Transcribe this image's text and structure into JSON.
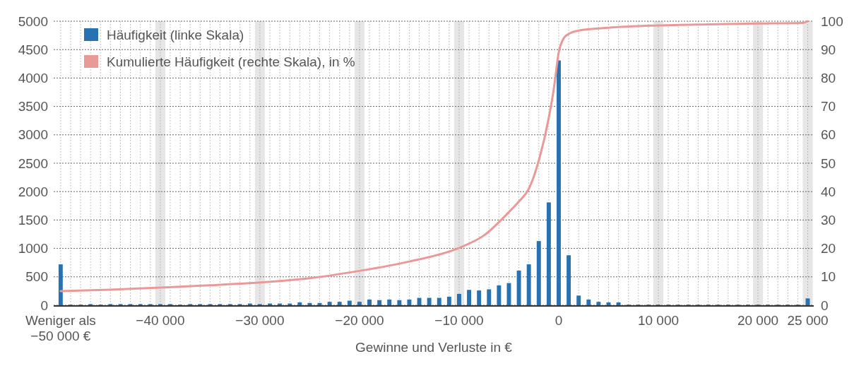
{
  "chart_data": {
    "type": "bar",
    "xlabel": "Gewinne und Verluste in €",
    "x": [
      -50000,
      -49000,
      -48000,
      -47000,
      -46000,
      -45000,
      -44000,
      -43000,
      -42000,
      -41000,
      -40000,
      -39000,
      -38000,
      -37000,
      -36000,
      -35000,
      -34000,
      -33000,
      -32000,
      -31000,
      -30000,
      -29000,
      -28000,
      -27000,
      -26000,
      -25000,
      -24000,
      -23000,
      -22000,
      -21000,
      -20000,
      -19000,
      -18000,
      -17000,
      -16000,
      -15000,
      -14000,
      -13000,
      -12000,
      -11000,
      -10000,
      -9000,
      -8000,
      -7000,
      -6000,
      -5000,
      -4000,
      -3000,
      -2000,
      -1000,
      0,
      1000,
      2000,
      3000,
      4000,
      5000,
      6000,
      7000,
      8000,
      9000,
      10000,
      11000,
      12000,
      13000,
      14000,
      15000,
      16000,
      17000,
      18000,
      19000,
      20000,
      21000,
      22000,
      23000,
      24000,
      25000
    ],
    "series": [
      {
        "name": "Häufigkeit (linke Skala)",
        "color": "#2872b2",
        "values": [
          720,
          10,
          10,
          20,
          10,
          20,
          20,
          20,
          20,
          20,
          20,
          20,
          10,
          20,
          20,
          20,
          20,
          20,
          20,
          30,
          20,
          30,
          30,
          30,
          50,
          40,
          40,
          60,
          60,
          80,
          60,
          100,
          90,
          100,
          90,
          100,
          130,
          130,
          130,
          150,
          200,
          270,
          260,
          280,
          350,
          390,
          610,
          720,
          1130,
          1810,
          4310,
          880,
          170,
          100,
          60,
          50,
          50,
          10,
          10,
          10,
          10,
          10,
          10,
          10,
          10,
          10,
          10,
          10,
          10,
          10,
          10,
          10,
          10,
          10,
          10,
          120
        ]
      },
      {
        "name": "Kumulierte Häufigkeit (rechte Skala), in %",
        "type": "line",
        "axis": "y2",
        "color": "#e99a98",
        "x": [
          -50000,
          -45000,
          -40000,
          -35000,
          -30000,
          -25000,
          -20000,
          -15000,
          -10000,
          -7500,
          -5000,
          -4000,
          -3000,
          -2000,
          -1000,
          -500,
          0,
          500,
          1000,
          2000,
          5000,
          10000,
          15000,
          20000,
          24500,
          25000
        ],
        "values": [
          5,
          5.5,
          6.2,
          7,
          8,
          9.5,
          12.1,
          15.4,
          20.2,
          24.6,
          32.8,
          36.5,
          41,
          51,
          66,
          76,
          89,
          94,
          95.5,
          96.7,
          97.7,
          98.5,
          98.9,
          99.2,
          99.4,
          100
        ]
      }
    ],
    "xlim": [
      -50700,
      25600
    ],
    "xticks": [
      {
        "value": -50000,
        "label": "Weniger als\n−50 000 €"
      },
      {
        "value": -49000,
        "label": null
      },
      {
        "value": -48000,
        "label": null
      },
      {
        "value": -47000,
        "label": null
      },
      {
        "value": -46000,
        "label": null
      },
      {
        "value": -45000,
        "label": null
      },
      {
        "value": -44000,
        "label": null
      },
      {
        "value": -43000,
        "label": null
      },
      {
        "value": -42000,
        "label": null
      },
      {
        "value": -41000,
        "label": null
      },
      {
        "value": -40000,
        "label": "−40 000"
      },
      {
        "value": -39000,
        "label": null
      },
      {
        "value": -38000,
        "label": null
      },
      {
        "value": -37000,
        "label": null
      },
      {
        "value": -36000,
        "label": null
      },
      {
        "value": -35000,
        "label": null
      },
      {
        "value": -34000,
        "label": null
      },
      {
        "value": -33000,
        "label": null
      },
      {
        "value": -32000,
        "label": null
      },
      {
        "value": -31000,
        "label": null
      },
      {
        "value": -30000,
        "label": "−30 000"
      },
      {
        "value": -29000,
        "label": null
      },
      {
        "value": -28000,
        "label": null
      },
      {
        "value": -27000,
        "label": null
      },
      {
        "value": -26000,
        "label": null
      },
      {
        "value": -25000,
        "label": null
      },
      {
        "value": -24000,
        "label": null
      },
      {
        "value": -23000,
        "label": null
      },
      {
        "value": -22000,
        "label": null
      },
      {
        "value": -21000,
        "label": null
      },
      {
        "value": -20000,
        "label": "−20 000"
      },
      {
        "value": -19000,
        "label": null
      },
      {
        "value": -18000,
        "label": null
      },
      {
        "value": -17000,
        "label": null
      },
      {
        "value": -16000,
        "label": null
      },
      {
        "value": -15000,
        "label": null
      },
      {
        "value": -14000,
        "label": null
      },
      {
        "value": -13000,
        "label": null
      },
      {
        "value": -12000,
        "label": null
      },
      {
        "value": -11000,
        "label": null
      },
      {
        "value": -10000,
        "label": "−10 000"
      },
      {
        "value": -9000,
        "label": null
      },
      {
        "value": -8000,
        "label": null
      },
      {
        "value": -7000,
        "label": null
      },
      {
        "value": -6000,
        "label": null
      },
      {
        "value": -5000,
        "label": null
      },
      {
        "value": -4000,
        "label": null
      },
      {
        "value": -3000,
        "label": null
      },
      {
        "value": -2000,
        "label": null
      },
      {
        "value": -1000,
        "label": null
      },
      0,
      {
        "value": 1000,
        "label": null
      },
      {
        "value": 2000,
        "label": null
      },
      {
        "value": 3000,
        "label": null
      },
      {
        "value": 4000,
        "label": null
      },
      {
        "value": 5000,
        "label": null
      },
      {
        "value": 6000,
        "label": null
      },
      {
        "value": 7000,
        "label": null
      },
      {
        "value": 8000,
        "label": null
      },
      {
        "value": 9000,
        "label": null
      },
      {
        "value": 10000,
        "label": "10 000"
      },
      {
        "value": 11000,
        "label": null
      },
      {
        "value": 12000,
        "label": null
      },
      {
        "value": 13000,
        "label": null
      },
      {
        "value": 14000,
        "label": null
      },
      {
        "value": 15000,
        "label": null
      },
      {
        "value": 16000,
        "label": null
      },
      {
        "value": 17000,
        "label": null
      },
      {
        "value": 18000,
        "label": null
      },
      {
        "value": 19000,
        "label": null
      },
      {
        "value": 20000,
        "label": "20 000"
      },
      {
        "value": 21000,
        "label": null
      },
      {
        "value": 22000,
        "label": null
      },
      {
        "value": 23000,
        "label": null
      },
      {
        "value": 24000,
        "label": null
      },
      {
        "value": 25000,
        "label": "25 000"
      }
    ],
    "ylim": [
      0,
      5000
    ],
    "yticks": [
      0,
      500,
      1000,
      1500,
      2000,
      2500,
      3000,
      3500,
      4000,
      4500,
      5000
    ],
    "y2lim": [
      0,
      100
    ],
    "y2ticks": [
      0,
      10,
      20,
      30,
      40,
      50,
      60,
      70,
      80,
      90,
      100
    ],
    "bands": [
      {
        "axis": "x",
        "from": -40500,
        "to": -39500,
        "color": "#e6e6e6"
      },
      {
        "axis": "x",
        "from": -30500,
        "to": -29500,
        "color": "#e6e6e6"
      },
      {
        "axis": "x",
        "from": -20500,
        "to": -19500,
        "color": "#e6e6e6"
      },
      {
        "axis": "x",
        "from": -10500,
        "to": -9500,
        "color": "#e6e6e6"
      },
      {
        "axis": "x",
        "from": 9500,
        "to": 10500,
        "color": "#e6e6e6"
      },
      {
        "axis": "x",
        "from": 19500,
        "to": 20500,
        "color": "#e6e6e6"
      },
      {
        "axis": "x",
        "from": 24500,
        "to": 25500,
        "color": "#e6e6e6"
      }
    ],
    "grid": true,
    "legend": "top left"
  }
}
